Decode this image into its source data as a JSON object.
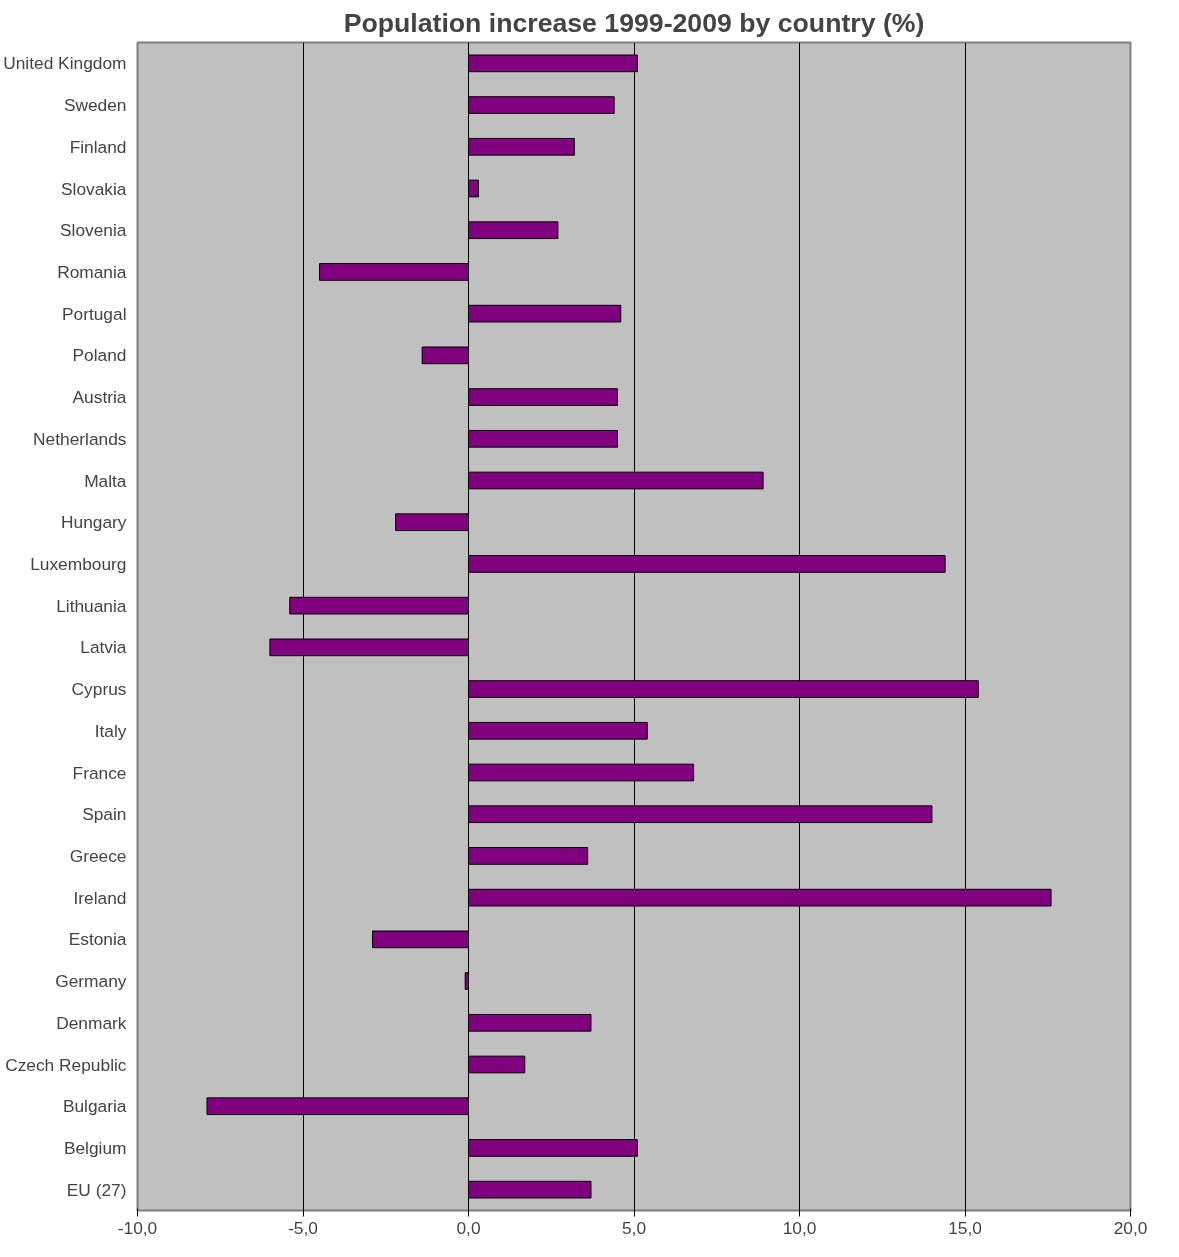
{
  "chart_data": {
    "type": "bar",
    "orientation": "horizontal",
    "title": "Population increase 1999-2009 by country (%)",
    "categories": [
      "United Kingdom",
      "Sweden",
      "Finland",
      "Slovakia",
      "Slovenia",
      "Romania",
      "Portugal",
      "Poland",
      "Austria",
      "Netherlands",
      "Malta",
      "Hungary",
      "Luxembourg",
      "Lithuania",
      "Latvia",
      "Cyprus",
      "Italy",
      "France",
      "Spain",
      "Greece",
      "Ireland",
      "Estonia",
      "Germany",
      "Denmark",
      "Czech Republic",
      "Bulgaria",
      "Belgium",
      "EU (27)"
    ],
    "values": [
      5.1,
      4.4,
      3.2,
      0.3,
      2.7,
      -4.5,
      4.6,
      -1.4,
      4.5,
      4.5,
      8.9,
      -2.2,
      14.4,
      -5.4,
      -6.0,
      15.4,
      5.4,
      6.8,
      14.0,
      3.6,
      17.6,
      -2.9,
      -0.1,
      3.7,
      1.7,
      -7.9,
      5.1,
      3.7
    ],
    "color": "#800080",
    "xlim": [
      -10,
      20
    ],
    "xticks": [
      {
        "value": -10,
        "label": "-10,0"
      },
      {
        "value": -5,
        "label": "-5,0"
      },
      {
        "value": 0,
        "label": "0,0"
      },
      {
        "value": 5,
        "label": "5,0"
      },
      {
        "value": 10,
        "label": "10,0"
      },
      {
        "value": 15,
        "label": "15,0"
      },
      {
        "value": 20,
        "label": "20,0"
      }
    ],
    "grid": "x"
  }
}
